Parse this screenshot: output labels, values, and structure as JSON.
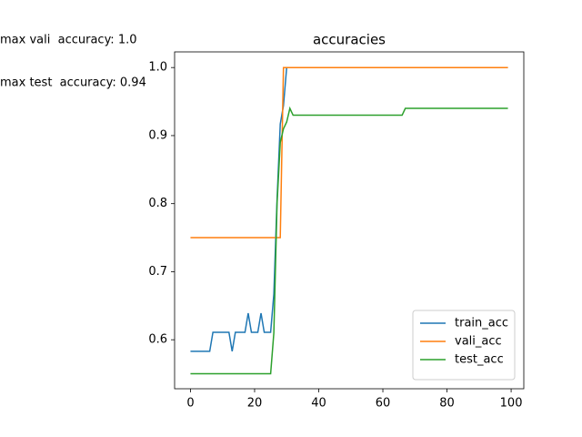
{
  "chart_data": {
    "type": "line",
    "title": "accuracies",
    "annotations": [
      "max vali  accuracy: 1.0",
      "max test  accuracy: 0.94"
    ],
    "x": [
      0,
      1,
      2,
      3,
      4,
      5,
      6,
      7,
      8,
      9,
      10,
      11,
      12,
      13,
      14,
      15,
      16,
      17,
      18,
      19,
      20,
      21,
      22,
      23,
      24,
      25,
      26,
      27,
      28,
      29,
      30,
      31,
      32,
      33,
      34,
      35,
      36,
      37,
      38,
      39,
      40,
      41,
      42,
      43,
      44,
      45,
      46,
      47,
      48,
      49,
      50,
      51,
      52,
      53,
      54,
      55,
      56,
      57,
      58,
      59,
      60,
      61,
      62,
      63,
      64,
      65,
      66,
      67,
      68,
      69,
      70,
      71,
      72,
      73,
      74,
      75,
      76,
      77,
      78,
      79,
      80,
      81,
      82,
      83,
      84,
      85,
      86,
      87,
      88,
      89,
      90,
      91,
      92,
      93,
      94,
      95,
      96,
      97,
      98,
      99
    ],
    "series": [
      {
        "name": "train_acc",
        "color": "#1f77b4",
        "values": [
          0.583,
          0.583,
          0.583,
          0.583,
          0.583,
          0.583,
          0.583,
          0.611,
          0.611,
          0.611,
          0.611,
          0.611,
          0.611,
          0.583,
          0.611,
          0.611,
          0.611,
          0.611,
          0.639,
          0.611,
          0.611,
          0.611,
          0.639,
          0.611,
          0.611,
          0.611,
          0.667,
          0.806,
          0.917,
          0.944,
          1.0,
          1.0,
          1.0,
          1.0,
          1.0,
          1.0,
          1.0,
          1.0,
          1.0,
          1.0,
          1.0,
          1.0,
          1.0,
          1.0,
          1.0,
          1.0,
          1.0,
          1.0,
          1.0,
          1.0,
          1.0,
          1.0,
          1.0,
          1.0,
          1.0,
          1.0,
          1.0,
          1.0,
          1.0,
          1.0,
          1.0,
          1.0,
          1.0,
          1.0,
          1.0,
          1.0,
          1.0,
          1.0,
          1.0,
          1.0,
          1.0,
          1.0,
          1.0,
          1.0,
          1.0,
          1.0,
          1.0,
          1.0,
          1.0,
          1.0,
          1.0,
          1.0,
          1.0,
          1.0,
          1.0,
          1.0,
          1.0,
          1.0,
          1.0,
          1.0,
          1.0,
          1.0,
          1.0,
          1.0,
          1.0,
          1.0,
          1.0,
          1.0,
          1.0,
          1.0
        ]
      },
      {
        "name": "vali_acc",
        "color": "#ff7f0e",
        "values": [
          0.75,
          0.75,
          0.75,
          0.75,
          0.75,
          0.75,
          0.75,
          0.75,
          0.75,
          0.75,
          0.75,
          0.75,
          0.75,
          0.75,
          0.75,
          0.75,
          0.75,
          0.75,
          0.75,
          0.75,
          0.75,
          0.75,
          0.75,
          0.75,
          0.75,
          0.75,
          0.75,
          0.75,
          0.75,
          1.0,
          1.0,
          1.0,
          1.0,
          1.0,
          1.0,
          1.0,
          1.0,
          1.0,
          1.0,
          1.0,
          1.0,
          1.0,
          1.0,
          1.0,
          1.0,
          1.0,
          1.0,
          1.0,
          1.0,
          1.0,
          1.0,
          1.0,
          1.0,
          1.0,
          1.0,
          1.0,
          1.0,
          1.0,
          1.0,
          1.0,
          1.0,
          1.0,
          1.0,
          1.0,
          1.0,
          1.0,
          1.0,
          1.0,
          1.0,
          1.0,
          1.0,
          1.0,
          1.0,
          1.0,
          1.0,
          1.0,
          1.0,
          1.0,
          1.0,
          1.0,
          1.0,
          1.0,
          1.0,
          1.0,
          1.0,
          1.0,
          1.0,
          1.0,
          1.0,
          1.0,
          1.0,
          1.0,
          1.0,
          1.0,
          1.0,
          1.0,
          1.0,
          1.0,
          1.0,
          1.0
        ]
      },
      {
        "name": "test_acc",
        "color": "#2ca02c",
        "values": [
          0.55,
          0.55,
          0.55,
          0.55,
          0.55,
          0.55,
          0.55,
          0.55,
          0.55,
          0.55,
          0.55,
          0.55,
          0.55,
          0.55,
          0.55,
          0.55,
          0.55,
          0.55,
          0.55,
          0.55,
          0.55,
          0.55,
          0.55,
          0.55,
          0.55,
          0.55,
          0.61,
          0.8,
          0.89,
          0.91,
          0.92,
          0.94,
          0.93,
          0.93,
          0.93,
          0.93,
          0.93,
          0.93,
          0.93,
          0.93,
          0.93,
          0.93,
          0.93,
          0.93,
          0.93,
          0.93,
          0.93,
          0.93,
          0.93,
          0.93,
          0.93,
          0.93,
          0.93,
          0.93,
          0.93,
          0.93,
          0.93,
          0.93,
          0.93,
          0.93,
          0.93,
          0.93,
          0.93,
          0.93,
          0.93,
          0.93,
          0.93,
          0.94,
          0.94,
          0.94,
          0.94,
          0.94,
          0.94,
          0.94,
          0.94,
          0.94,
          0.94,
          0.94,
          0.94,
          0.94,
          0.94,
          0.94,
          0.94,
          0.94,
          0.94,
          0.94,
          0.94,
          0.94,
          0.94,
          0.94,
          0.94,
          0.94,
          0.94,
          0.94,
          0.94,
          0.94,
          0.94,
          0.94,
          0.94,
          0.94
        ]
      }
    ],
    "xlim": [
      -4.95,
      103.95
    ],
    "xticks": [
      0,
      20,
      40,
      60,
      80,
      100
    ],
    "ylim": [
      0.528,
      1.023
    ],
    "yticks": [
      0.6,
      0.7,
      0.8,
      0.9,
      {
        "value": 1,
        "label": "1.0"
      }
    ],
    "legend": "lower right"
  }
}
